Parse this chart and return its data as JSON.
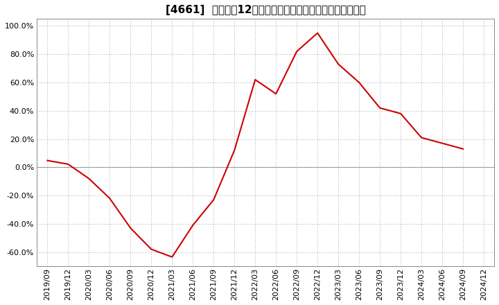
{
  "title": "[4661]  売上高の12か月移動合計の対前年同期増減率の推移",
  "line_color": "#cc0000",
  "background_color": "#ffffff",
  "plot_bg_color": "#ffffff",
  "grid_color": "#bbbbbb",
  "zero_line_color": "#888888",
  "ylim": [
    -0.7,
    1.05
  ],
  "yticks": [
    -0.6,
    -0.4,
    -0.2,
    0.0,
    0.2,
    0.4,
    0.6,
    0.8,
    1.0
  ],
  "data": [
    [
      "2019/09",
      0.048
    ],
    [
      "2019/12",
      0.022
    ],
    [
      "2020/03",
      -0.08
    ],
    [
      "2020/06",
      -0.22
    ],
    [
      "2020/09",
      -0.43
    ],
    [
      "2020/12",
      -0.58
    ],
    [
      "2021/03",
      -0.635
    ],
    [
      "2021/06",
      -0.41
    ],
    [
      "2021/09",
      -0.23
    ],
    [
      "2021/12",
      0.12
    ],
    [
      "2022/03",
      0.62
    ],
    [
      "2022/06",
      0.52
    ],
    [
      "2022/09",
      0.82
    ],
    [
      "2022/12",
      0.95
    ],
    [
      "2023/03",
      0.73
    ],
    [
      "2023/06",
      0.6
    ],
    [
      "2023/09",
      0.42
    ],
    [
      "2023/12",
      0.38
    ],
    [
      "2024/03",
      0.21
    ],
    [
      "2024/06",
      0.17
    ],
    [
      "2024/09",
      0.13
    ]
  ],
  "x_tick_labels": [
    "2019/09",
    "2019/12",
    "2020/03",
    "2020/06",
    "2020/09",
    "2020/12",
    "2021/03",
    "2021/06",
    "2021/09",
    "2021/12",
    "2022/03",
    "2022/06",
    "2022/09",
    "2022/12",
    "2023/03",
    "2023/06",
    "2023/09",
    "2023/12",
    "2024/03",
    "2024/06",
    "2024/09",
    "2024/12"
  ],
  "title_fontsize": 11,
  "tick_fontsize": 8,
  "linewidth": 1.5
}
